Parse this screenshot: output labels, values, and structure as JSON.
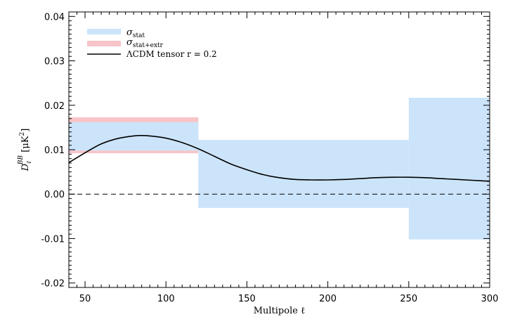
{
  "chart_data": {
    "type": "area",
    "xlabel": "Multipole ℓ",
    "ylabel": "D_ℓ^BB [μK²]",
    "xlim": [
      40,
      300
    ],
    "ylim": [
      -0.021,
      0.041
    ],
    "xticks": [
      50,
      100,
      150,
      200,
      250,
      300
    ],
    "yticks": [
      -0.02,
      -0.01,
      0.0,
      0.01,
      0.02,
      0.03,
      0.04
    ],
    "ytick_labels": [
      "-0.02",
      "-0.01",
      "0.00",
      "0.01",
      "0.02",
      "0.03",
      "0.04"
    ],
    "grid": false,
    "legend_position": "top-left",
    "zero_line": {
      "y": 0.0,
      "style": "dashed"
    },
    "bins": [
      {
        "x_range": [
          40,
          120
        ],
        "stat": [
          0.0098,
          0.0162
        ],
        "stat_extr": [
          0.0092,
          0.0173
        ]
      },
      {
        "x_range": [
          120,
          250
        ],
        "stat": [
          -0.0031,
          0.0122
        ],
        "stat_extr": null
      },
      {
        "x_range": [
          250,
          300
        ],
        "stat": [
          -0.0102,
          0.0217
        ],
        "stat_extr": null
      }
    ],
    "series": [
      {
        "name": "σ_stat",
        "kind": "band",
        "color": "#cce4fa"
      },
      {
        "name": "σ_stat+extr",
        "kind": "band",
        "color": "#f7c5c8"
      },
      {
        "name": "ΛCDM tensor r = 0.2",
        "kind": "line",
        "color": "#000000",
        "x": [
          40,
          50,
          60,
          70,
          80,
          85,
          90,
          100,
          110,
          120,
          130,
          140,
          150,
          160,
          170,
          180,
          190,
          200,
          210,
          220,
          230,
          240,
          250,
          260,
          270,
          280,
          290,
          300
        ],
        "y": [
          0.0071,
          0.0093,
          0.0113,
          0.0125,
          0.0131,
          0.0132,
          0.0131,
          0.0126,
          0.0116,
          0.0102,
          0.0085,
          0.0068,
          0.0055,
          0.0044,
          0.0037,
          0.0033,
          0.0032,
          0.0032,
          0.0033,
          0.0035,
          0.0037,
          0.0038,
          0.0038,
          0.0037,
          0.0035,
          0.0033,
          0.0031,
          0.0029
        ]
      }
    ]
  }
}
